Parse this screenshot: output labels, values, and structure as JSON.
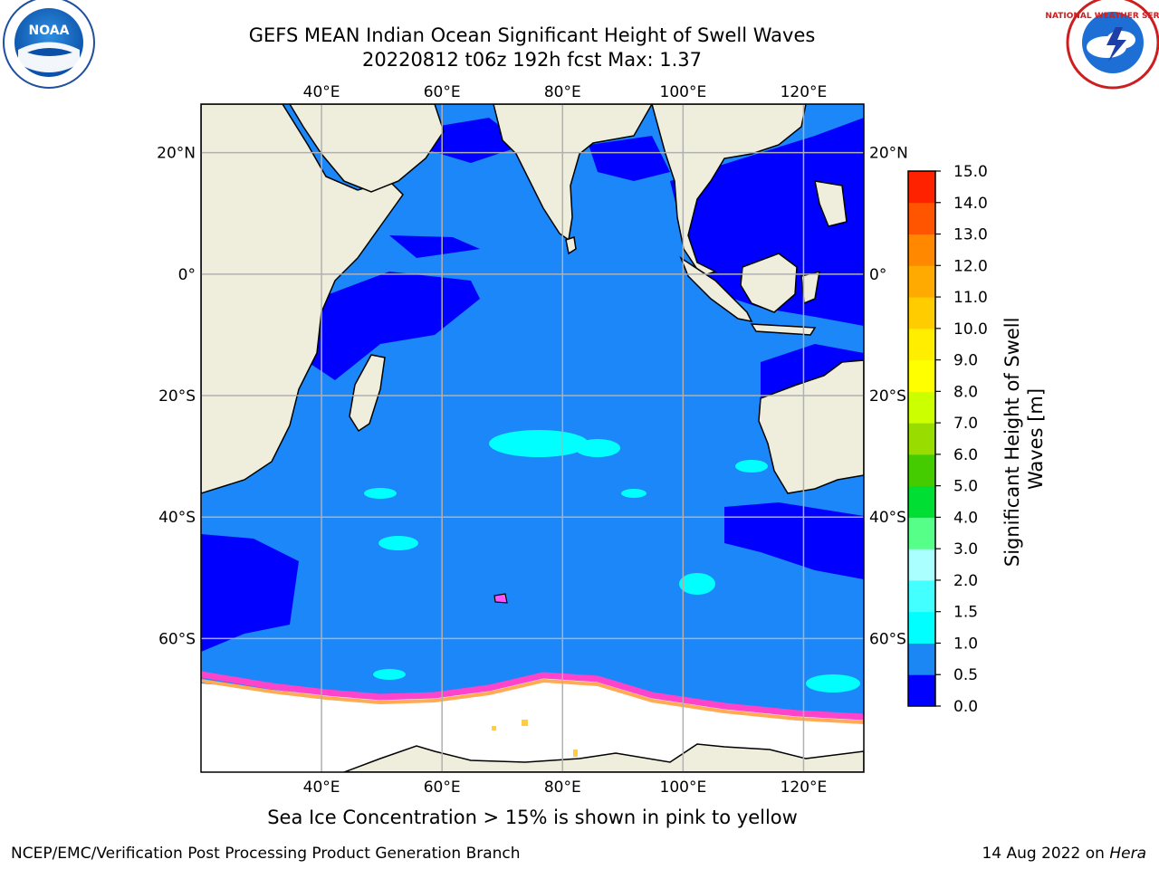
{
  "header": {
    "title": "GEFS MEAN Indian Ocean Significant Height of Swell Waves",
    "subtitle": "20220812 t06z 192h fcst   Max: 1.37"
  },
  "logos": {
    "left": {
      "icon": "noaa-logo-icon",
      "text": "NOAA"
    },
    "right": {
      "icon": "nws-logo-icon",
      "text": "NATIONAL WEATHER SERVICE"
    }
  },
  "map": {
    "lon_range": [
      20,
      130
    ],
    "lat_range": [
      -82,
      28
    ],
    "lon_ticks": [
      {
        "v": 40,
        "label": "40°E"
      },
      {
        "v": 60,
        "label": "60°E"
      },
      {
        "v": 80,
        "label": "80°E"
      },
      {
        "v": 100,
        "label": "100°E"
      },
      {
        "v": 120,
        "label": "120°E"
      }
    ],
    "lat_ticks": [
      {
        "v": 20,
        "label": "20°N"
      },
      {
        "v": 0,
        "label": "0°"
      },
      {
        "v": -20,
        "label": "20°S"
      },
      {
        "v": -40,
        "label": "40°S"
      },
      {
        "v": -60,
        "label": "60°S"
      }
    ],
    "colors": {
      "land": "#efeedd",
      "ocean_main": "#1b87f9",
      "ocean_low": "#0000ff",
      "swell_1_5": "#00ffff",
      "grid": "#b0b0b0",
      "ice": "#ffffff"
    }
  },
  "colorbar": {
    "label": "Significant Height of Swell Waves [m]",
    "label_line1": "Significant Height of Swell",
    "label_line2": "Waves [m]",
    "ticks": [
      "0.0",
      "0.5",
      "1.0",
      "1.5",
      "2.0",
      "3.0",
      "4.0",
      "5.0",
      "6.0",
      "7.0",
      "8.0",
      "9.0",
      "10.0",
      "11.0",
      "12.0",
      "13.0",
      "14.0",
      "15.0"
    ],
    "colors": [
      "#0000ff",
      "#1a87f5",
      "#00ffff",
      "#44ffff",
      "#aaffff",
      "#55ff88",
      "#00dd33",
      "#44cc00",
      "#99dd00",
      "#ccff00",
      "#ffff00",
      "#ffee00",
      "#ffcc00",
      "#ffaa00",
      "#ff8800",
      "#ff5500",
      "#ff2200"
    ]
  },
  "caption": "Sea Ice Concentration > 15% is shown in pink to yellow",
  "footer": {
    "left": "NCEP/EMC/Verification Post Processing Product Generation Branch",
    "right_date": "14 Aug 2022 on ",
    "right_host": "Hera"
  }
}
